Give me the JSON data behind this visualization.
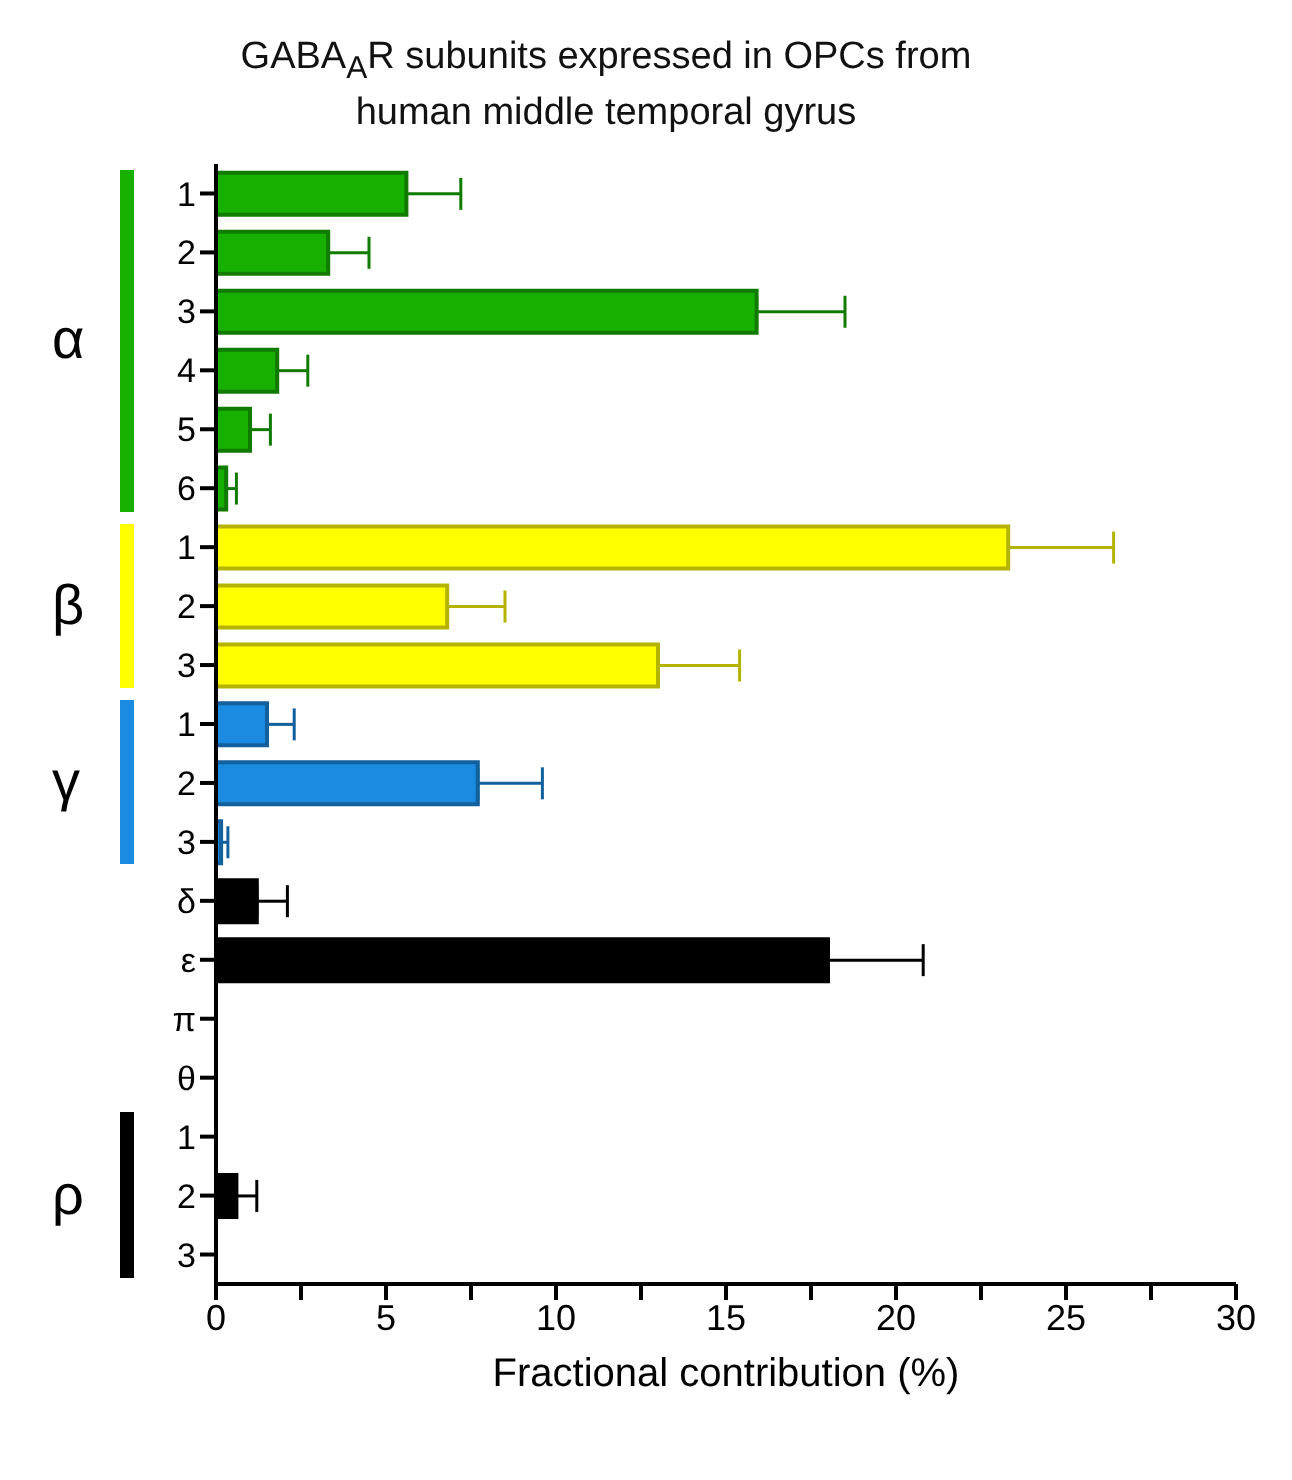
{
  "chart_data": {
    "type": "bar",
    "orientation": "horizontal",
    "title": "GABA$_{A}$R subunits expressed in OPCs from human middle temporal gyrus",
    "xlabel": "Fractional contribution (%)",
    "categories": [
      "1",
      "2",
      "3",
      "4",
      "5",
      "6",
      "1",
      "2",
      "3",
      "1",
      "2",
      "3",
      "δ",
      "ε",
      "π",
      "θ",
      "1",
      "2",
      "3"
    ],
    "values": [
      5.6,
      3.3,
      15.9,
      1.8,
      1.0,
      0.3,
      23.3,
      6.8,
      13.0,
      1.5,
      7.7,
      0.15,
      1.2,
      18.0,
      0,
      0,
      0,
      0.6,
      0
    ],
    "errors": [
      [
        5.6,
        7.2
      ],
      [
        3.3,
        4.5
      ],
      [
        15.9,
        18.5
      ],
      [
        1.8,
        2.7
      ],
      [
        1.0,
        1.6
      ],
      [
        0.3,
        0.6
      ],
      [
        23.3,
        26.4
      ],
      [
        6.8,
        8.5
      ],
      [
        13.0,
        15.4
      ],
      [
        1.5,
        2.3
      ],
      [
        7.7,
        9.6
      ],
      [
        0.15,
        0.35
      ],
      [
        1.2,
        2.1
      ],
      [
        18.0,
        20.8
      ],
      null,
      null,
      null,
      [
        0.6,
        1.2
      ],
      null
    ],
    "colors": [
      "#18b000",
      "#18b000",
      "#18b000",
      "#18b000",
      "#18b000",
      "#18b000",
      "#ffff00",
      "#ffff00",
      "#ffff00",
      "#1a8be0",
      "#1a8be0",
      "#1a8be0",
      "#000000",
      "#000000",
      "#000000",
      "#000000",
      "#000000",
      "#000000",
      "#000000"
    ],
    "annotations": [
      "α",
      "β",
      "γ",
      "ρ"
    ],
    "xlim": [
      0,
      30
    ],
    "xticks": [
      0,
      {
        "value": 2.5,
        "label": null
      },
      5,
      {
        "value": 7.5,
        "label": null
      },
      10,
      {
        "value": 12.5,
        "label": null
      },
      15,
      {
        "value": 17.5,
        "label": null
      },
      20,
      {
        "value": 22.5,
        "label": null
      },
      25,
      {
        "value": 27.5,
        "label": null
      },
      30
    ],
    "grid": false,
    "legend": false
  }
}
